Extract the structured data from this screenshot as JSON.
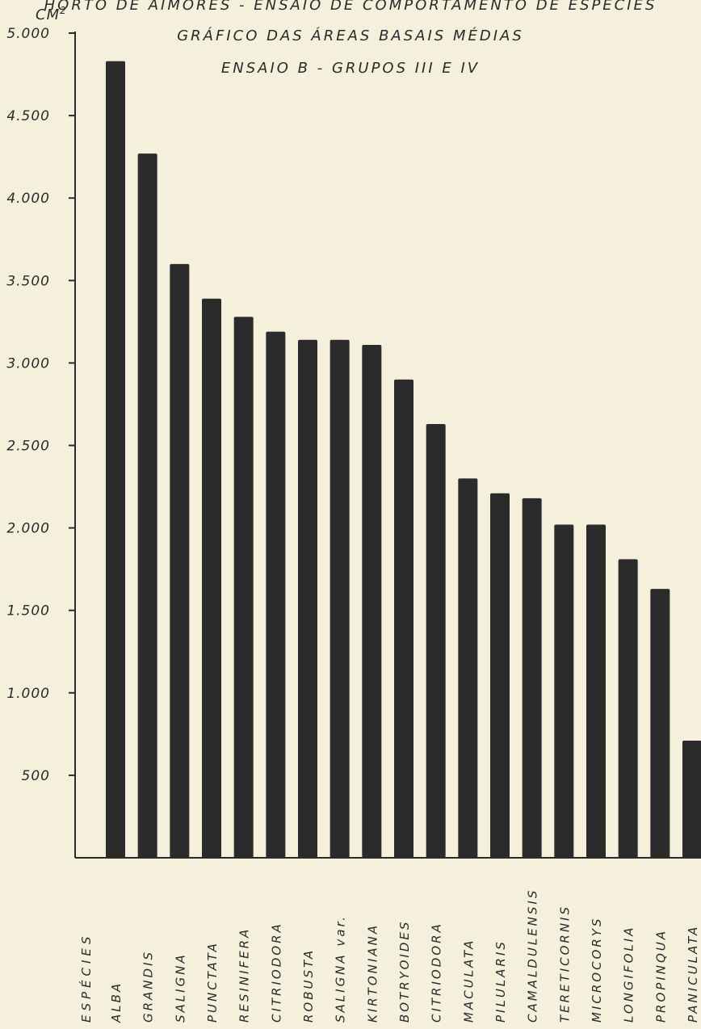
{
  "chart_data": {
    "type": "bar",
    "title": "HORTO DE AIMORÉS - ENSAIO DE COMPORTAMENTO DE ESPÉCIES",
    "subtitle": "GRÁFICO DAS ÁREAS BASAIS MÉDIAS",
    "subtitle2": "ENSAIO B - GRUPOS III E IV",
    "ylabel": "CM",
    "ylabel_superscript": "2",
    "xlabel": "ESPÉCIES",
    "ylim": [
      0,
      5000
    ],
    "y_ticks": [
      "500",
      "1.000",
      "1.500",
      "2.000",
      "2.500",
      "3.000",
      "3.500",
      "4.000",
      "4.500",
      "5.000"
    ],
    "y_tick_values": [
      500,
      1000,
      1500,
      2000,
      2500,
      3000,
      3500,
      4000,
      4500,
      5000
    ],
    "categories": [
      "ALBA",
      "GRANDIS",
      "SALIGNA",
      "PUNCTATA",
      "RESINIFERA",
      "CITRIODORA",
      "ROBUSTA",
      "SALIGNA var.",
      "KIRTONIANA",
      "BOTRYOIDES",
      "CITRIODORA",
      "MACULATA",
      "PILULARIS",
      "CAMALDULENSIS",
      "TERETICORNIS",
      "MICROCORYS",
      "LONGIFOLIA",
      "PROPINQUA",
      "PANICULATA"
    ],
    "values": [
      4830,
      4270,
      3600,
      3390,
      3280,
      3190,
      3140,
      3140,
      3110,
      2900,
      2630,
      2300,
      2210,
      2180,
      2020,
      2020,
      1810,
      1630,
      710
    ],
    "grid": false,
    "colors": {
      "bar": "#2b2b2b",
      "background": "#f5f0dc",
      "ink": "#2a2a2a"
    }
  }
}
